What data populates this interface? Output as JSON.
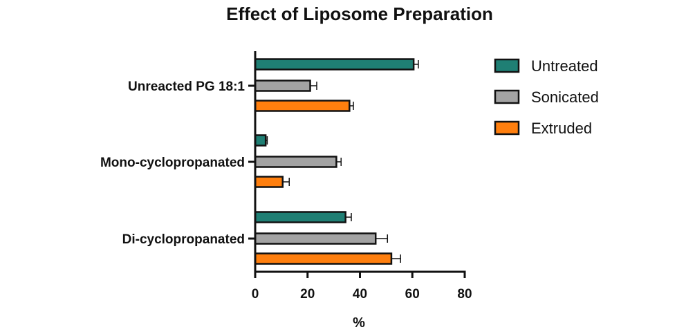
{
  "chart_data": {
    "type": "bar",
    "orientation": "horizontal",
    "title": "Effect of Liposome Preparation",
    "xlabel": "%",
    "ylabel": "",
    "xlim": [
      0,
      80
    ],
    "x_ticks": [
      0,
      20,
      40,
      60,
      80
    ],
    "categories": [
      "Unreacted PG 18:1",
      "Mono-cyclopropanated",
      "Di-cyclopropanated"
    ],
    "series": [
      {
        "name": "Untreated",
        "color": "#1f7f74",
        "values": [
          60.5,
          4,
          34.5
        ],
        "errors": [
          1.8,
          0.6,
          2.2
        ]
      },
      {
        "name": "Sonicated",
        "color": "#a3a3a3",
        "values": [
          21,
          31,
          46
        ],
        "errors": [
          2.5,
          1.8,
          4.5
        ]
      },
      {
        "name": "Extruded",
        "color": "#ff7f0e",
        "values": [
          36,
          10.5,
          52
        ],
        "errors": [
          1.5,
          2.5,
          3.5
        ]
      }
    ],
    "grid": false,
    "legend_position": "right"
  }
}
